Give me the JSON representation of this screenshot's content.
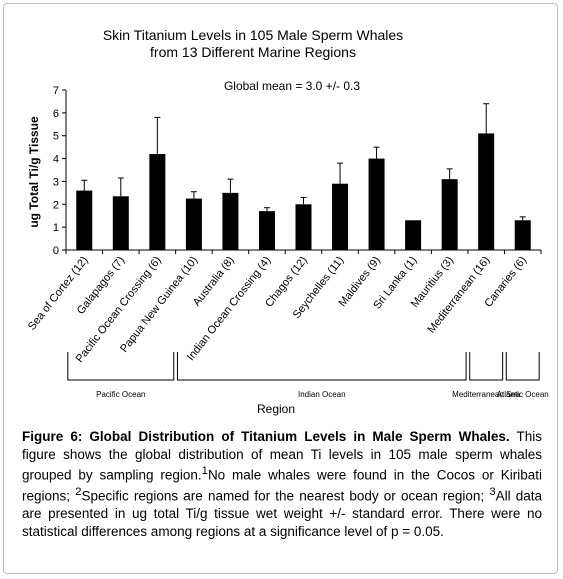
{
  "chart_data": {
    "type": "bar",
    "title": [
      "Skin Titanium Levels in 105 Male Sperm Whales",
      "from 13 Different Marine Regions"
    ],
    "annotation": "Global mean = 3.0 +/- 0.3",
    "ylabel": "ug Total Ti/g Tissue",
    "xlabel": "Region",
    "ylim": [
      0,
      7
    ],
    "yticks": [
      "0",
      "1",
      "2",
      "3",
      "4",
      "5",
      "6",
      "7"
    ],
    "bar_color": "#000000",
    "categories": [
      "Sea of Cortez (12)",
      "Galapagos (7)",
      "Pacific Ocean Crossing (6)",
      "Papua New Guinea (10)",
      "Australia (8)",
      "Indian Ocean Crossing (4)",
      "Chagos (12)",
      "Seychelles (11)",
      "Maldives (9)",
      "Sri Lanka (1)",
      "Mauritius (3)",
      "Mediterranean (16)",
      "Canaries (6)"
    ],
    "values": [
      2.6,
      2.35,
      4.2,
      2.25,
      2.5,
      1.7,
      2.0,
      2.9,
      4.0,
      1.3,
      3.1,
      5.1,
      1.3
    ],
    "errors": [
      0.45,
      0.8,
      1.6,
      0.3,
      0.6,
      0.15,
      0.3,
      0.9,
      0.5,
      null,
      0.45,
      1.3,
      0.15
    ],
    "groups": [
      {
        "label": "Pacific Ocean",
        "from": 0,
        "to": 2
      },
      {
        "label": "Indian Ocean",
        "from": 3,
        "to": 10
      },
      {
        "label": "Mediterranean Sea",
        "from": 11,
        "to": 11
      },
      {
        "label": "Atlantic Ocean",
        "from": 12,
        "to": 12
      }
    ]
  },
  "caption": {
    "title": "Figure 6: Global Distribution of Titanium Levels in Male Sperm Whales.",
    "part1": " This figure shows the global distribution of mean Ti levels in 105 male sperm whales grouped by sampling region.",
    "sup1": "1",
    "part2": "No male whales were found in the Cocos or Kiribati regions; ",
    "sup2": "2",
    "part3": "Specific regions are named for the nearest body or ocean region; ",
    "sup3": "3",
    "part4": "All data are presented in ug total Ti/g tissue wet weight +/- standard error. There were no statistical differences among regions at a significance level of p = 0.05."
  }
}
